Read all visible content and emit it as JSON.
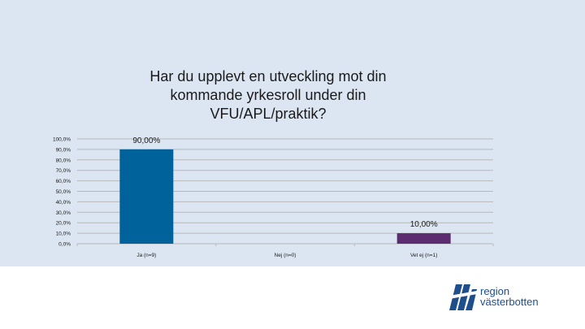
{
  "chart_data": {
    "type": "bar",
    "title_lines": [
      "Har du upplevt en utveckling mot din",
      "kommande yrkesroll under din",
      "VFU/APL/praktik?"
    ],
    "categories": [
      "Ja (n=9)",
      "Nej (n=0)",
      "Vet ej (n=1)"
    ],
    "values": [
      90,
      0,
      10
    ],
    "data_labels": [
      "90,00%",
      "",
      "10,00%"
    ],
    "yticks": [
      "0,0%",
      "10,0%",
      "20,0%",
      "30,0%",
      "40,0%",
      "50,0%",
      "60,0%",
      "70,0%",
      "80,0%",
      "90,0%",
      "100,0%"
    ],
    "ylim": [
      0,
      100
    ],
    "grid": true,
    "colors": {
      "bar": "#00629b",
      "bar_secondary": "#5b2c6f",
      "grid": "#b8b8b8",
      "text": "#1a1a1a"
    }
  },
  "logo": {
    "line1": "region",
    "line2": "västerbotten"
  }
}
